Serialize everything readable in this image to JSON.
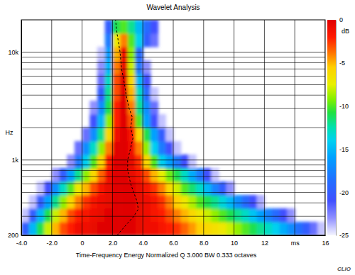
{
  "chart_data": {
    "type": "heatmap",
    "title": "Wavelet Analysis",
    "xlabel": "Time-Frequency Energy Normalized Q 3.000 BW 0.333 octaves",
    "ylabel": "Hz",
    "zlabel": "dB",
    "log": "y",
    "grid": true,
    "xlim": [
      -4,
      16
    ],
    "xticks": [
      {
        "value": -4,
        "label": "-4.0"
      },
      {
        "value": -2,
        "label": "-2.0"
      },
      0,
      {
        "value": 2,
        "label": "2.0"
      },
      {
        "value": 4,
        "label": "4.0"
      },
      {
        "value": 6,
        "label": "6.0"
      },
      {
        "value": 8,
        "label": "8.0"
      },
      10,
      12,
      {
        "value": 14,
        "label": "ms"
      },
      16
    ],
    "ylim": [
      200,
      20000
    ],
    "yticks": [
      200,
      {
        "value": 1000,
        "label": "1k"
      },
      {
        "value": 10000,
        "label": "10k"
      }
    ],
    "y_grid": [
      300,
      400,
      500,
      600,
      700,
      800,
      900,
      2000,
      3000,
      4000,
      5000,
      6000,
      7000,
      8000,
      9000
    ],
    "zlim": [
      -25,
      0
    ],
    "zticks": [
      0,
      -5,
      -10,
      -15,
      -20,
      -25
    ],
    "x_edges": [
      -4,
      -3.5,
      -3,
      -2.5,
      -2,
      -1.5,
      -1,
      -0.5,
      0,
      0.5,
      1,
      1.5,
      2,
      2.5,
      3,
      3.5,
      4,
      4.5,
      5,
      5.5,
      6,
      6.5,
      7,
      7.5,
      8,
      8.5,
      9,
      9.5,
      10,
      10.5,
      11,
      11.5,
      12,
      12.5,
      13,
      13.5,
      14,
      14.5,
      15,
      15.5,
      16
    ],
    "y_edges": [
      200,
      267,
      356,
      474,
      632,
      843,
      1125,
      1499,
      2000,
      2667,
      3557,
      4743,
      6325,
      8434,
      11247,
      14998,
      20000
    ],
    "z": [
      [
        -20,
        -15,
        -11,
        -8,
        -5,
        -3,
        -2,
        -1,
        -1,
        -0.5,
        0,
        0,
        0,
        0,
        0,
        -0.5,
        -1,
        -1,
        -1.5,
        -2,
        -2.5,
        -3.5,
        -4.5,
        -5.5,
        -6,
        -6.5,
        -7,
        -8,
        -9,
        -10,
        -11,
        -12,
        -13,
        -14,
        -15.5,
        -17,
        -18.5,
        -20,
        -22,
        -24
      ],
      [
        -24,
        -20,
        -15,
        -11,
        -8,
        -5,
        -3,
        -2,
        -1.5,
        -1,
        -0.5,
        0,
        0,
        0,
        0,
        -0.5,
        -1,
        -1.5,
        -2,
        -3,
        -4,
        -5,
        -6,
        -7,
        -8,
        -9,
        -10,
        -11,
        -12,
        -13,
        -14.5,
        -16,
        -17.5,
        -19,
        -21,
        -23,
        null,
        null,
        null,
        null
      ],
      [
        null,
        -24,
        -20,
        -16,
        -12,
        -9,
        -6,
        -4,
        -2.5,
        -1.5,
        -1,
        -0.5,
        0,
        0,
        0,
        -0.5,
        -1,
        -1.5,
        -2.5,
        -4,
        -5.5,
        -7,
        -8.5,
        -10,
        -11,
        -12,
        -13.5,
        -15,
        -17,
        -19,
        -21,
        -23.5,
        null,
        null,
        null,
        null,
        null,
        null,
        null,
        null
      ],
      [
        null,
        null,
        -24,
        -21,
        -17,
        -13,
        -10,
        -7,
        -5,
        -3,
        -1.5,
        -0.5,
        0,
        0,
        0,
        -0.5,
        -1.5,
        -2.5,
        -4,
        -6,
        -8,
        -10,
        -11.5,
        -13,
        -15,
        -17.5,
        -20,
        -23,
        null,
        null,
        null,
        null,
        null,
        null,
        null,
        null,
        null,
        null,
        null,
        null
      ],
      [
        null,
        null,
        null,
        null,
        -23,
        -20,
        -16,
        -12,
        -9,
        -6,
        -3.5,
        -1,
        0,
        0,
        -0.5,
        -1.5,
        -3,
        -5,
        -7.5,
        -9.5,
        -11,
        -13,
        -15.5,
        -18,
        -21,
        -24,
        null,
        null,
        null,
        null,
        null,
        null,
        null,
        null,
        null,
        null,
        null,
        null,
        null,
        null
      ],
      [
        null,
        null,
        null,
        null,
        null,
        null,
        -23,
        -18,
        -14,
        -10,
        -6,
        -2,
        0,
        0,
        -0.5,
        -2.5,
        -6,
        -10,
        -14,
        -16,
        -18,
        -21,
        -24,
        null,
        null,
        null,
        null,
        null,
        null,
        null,
        null,
        null,
        null,
        null,
        null,
        null,
        null,
        null,
        null,
        null
      ],
      [
        null,
        null,
        null,
        null,
        null,
        null,
        null,
        -22,
        -17,
        -13,
        -9,
        -4,
        0,
        0,
        -1,
        -4,
        -9,
        -14,
        -18,
        -21,
        -24,
        null,
        null,
        null,
        null,
        null,
        null,
        null,
        null,
        null,
        null,
        null,
        null,
        null,
        null,
        null,
        null,
        null,
        null,
        null
      ],
      [
        null,
        null,
        null,
        null,
        null,
        null,
        null,
        null,
        -22,
        -17,
        -12,
        -6,
        -1,
        0,
        -1.5,
        -6,
        -11,
        -16,
        -20,
        -24,
        null,
        null,
        null,
        null,
        null,
        null,
        null,
        null,
        null,
        null,
        null,
        null,
        null,
        null,
        null,
        null,
        null,
        null,
        null,
        null
      ],
      [
        null,
        null,
        null,
        null,
        null,
        null,
        null,
        null,
        null,
        -21,
        -15,
        -9,
        -2,
        0,
        -3,
        -10,
        -16,
        -21,
        -24,
        null,
        null,
        null,
        null,
        null,
        null,
        null,
        null,
        null,
        null,
        null,
        null,
        null,
        null,
        null,
        null,
        null,
        null,
        null,
        null,
        null
      ],
      [
        null,
        null,
        null,
        null,
        null,
        null,
        null,
        null,
        null,
        -23,
        -17,
        -11,
        -2,
        0,
        -4,
        -12,
        -17,
        -22,
        null,
        null,
        null,
        null,
        null,
        null,
        null,
        null,
        null,
        null,
        null,
        null,
        null,
        null,
        null,
        null,
        null,
        null,
        null,
        null,
        null,
        null
      ],
      [
        null,
        null,
        null,
        null,
        null,
        null,
        null,
        null,
        null,
        null,
        -20,
        -12,
        -3,
        0,
        -5,
        -13,
        -19,
        -24,
        null,
        null,
        null,
        null,
        null,
        null,
        null,
        null,
        null,
        null,
        null,
        null,
        null,
        null,
        null,
        null,
        null,
        null,
        null,
        null,
        null,
        null
      ],
      [
        null,
        null,
        null,
        null,
        null,
        null,
        null,
        null,
        null,
        null,
        -22,
        -13,
        -3,
        0,
        -6,
        -15,
        -21,
        null,
        null,
        null,
        null,
        null,
        null,
        null,
        null,
        null,
        null,
        null,
        null,
        null,
        null,
        null,
        null,
        null,
        null,
        null,
        null,
        null,
        null,
        null
      ],
      [
        null,
        null,
        null,
        null,
        null,
        null,
        null,
        null,
        null,
        null,
        -23,
        -15,
        -4,
        -0.5,
        -8,
        -18,
        -23,
        null,
        null,
        null,
        null,
        null,
        null,
        null,
        null,
        null,
        null,
        null,
        null,
        null,
        null,
        null,
        null,
        null,
        null,
        null,
        null,
        null,
        null,
        null
      ],
      [
        null,
        null,
        null,
        null,
        null,
        null,
        null,
        null,
        null,
        null,
        -24,
        -16,
        -5,
        -1,
        -9,
        -19,
        null,
        null,
        null,
        null,
        null,
        null,
        null,
        null,
        null,
        null,
        null,
        null,
        null,
        null,
        null,
        null,
        null,
        null,
        null,
        null,
        null,
        null,
        null,
        null
      ],
      [
        null,
        null,
        null,
        null,
        null,
        null,
        null,
        null,
        null,
        null,
        null,
        -18,
        -7,
        -4,
        -10,
        -14,
        -20,
        -22,
        null,
        null,
        null,
        null,
        null,
        null,
        null,
        null,
        null,
        null,
        null,
        null,
        null,
        null,
        null,
        null,
        null,
        null,
        null,
        null,
        null,
        null
      ],
      [
        null,
        null,
        null,
        null,
        null,
        null,
        null,
        null,
        null,
        null,
        null,
        -20,
        -11,
        -10,
        -12,
        -15,
        -19,
        -21,
        null,
        null,
        null,
        null,
        null,
        null,
        null,
        null,
        null,
        null,
        null,
        null,
        null,
        null,
        null,
        null,
        null,
        null,
        null,
        null,
        null,
        null
      ]
    ],
    "series": [
      {
        "type": "line",
        "line_style": "dashed",
        "color": "#000000",
        "x": [
          2.3,
          2.9,
          3.4,
          3.7,
          3.6,
          3.4,
          3.2,
          3.0,
          3.0,
          3.2,
          3.35,
          3.2,
          3.3,
          3.1,
          2.9,
          2.8,
          2.6,
          2.5,
          2.3,
          2.2
        ],
        "values": [
          200,
          250,
          300,
          350,
          420,
          500,
          600,
          800,
          1000,
          1300,
          1600,
          2000,
          2500,
          3000,
          4000,
          5000,
          7000,
          10000,
          15000,
          20000
        ]
      }
    ],
    "annotations": [
      "CLIO"
    ]
  }
}
